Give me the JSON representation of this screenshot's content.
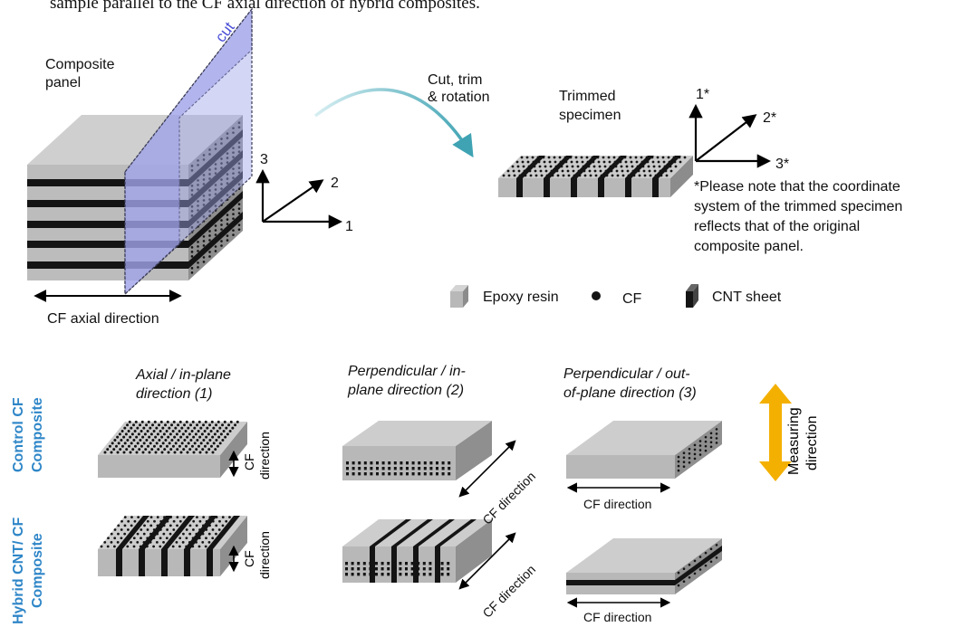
{
  "caption_top": "sample parallel to the CF axial direction of hybrid composites.",
  "panel": {
    "label_line1": "Composite",
    "label_line2": "panel",
    "cut_label": "cut",
    "axis_1": "1",
    "axis_2": "2",
    "axis_3": "3",
    "cf_axial_label": "CF axial direction"
  },
  "process": {
    "line1": "Cut, trim",
    "line2": "& rotation"
  },
  "specimen": {
    "label_line1": "Trimmed",
    "label_line2": "specimen",
    "axis_1": "1*",
    "axis_2": "2*",
    "axis_3": "3*",
    "note": [
      "*Please note that the coordinate",
      "system of the trimmed specimen",
      "reflects that of the original",
      "composite panel."
    ]
  },
  "legend": {
    "epoxy": "Epoxy resin",
    "cf": "CF",
    "cnt": "CNT sheet"
  },
  "columns": [
    {
      "line1": "Axial / in-plane",
      "line2": "direction (1)"
    },
    {
      "line1": "Perpendicular / in-",
      "line2": "plane direction (2)"
    },
    {
      "line1": "Perpendicular / out-",
      "line2": "of-plane direction (3)"
    }
  ],
  "rows": [
    {
      "line1": "Control CF",
      "line2": "Composite"
    },
    {
      "line1": "Hybrid CNT/ CF",
      "line2": "Composite"
    }
  ],
  "cf_direction": "CF direction",
  "cf_word": "CF",
  "direction_word": "direction",
  "measuring": {
    "line1": "Measuring",
    "line2": "direction"
  },
  "colors": {
    "cut_plane": "#9fa5e8",
    "epoxy_top": "#cdcdcd",
    "epoxy_front": "#b8b8b8",
    "epoxy_side": "#8c8c8c",
    "cnt": "#141414",
    "arrow_teal": "#3fa3b3",
    "measuring_arrow": "#f4b000",
    "row_label": "#2e86c8"
  }
}
